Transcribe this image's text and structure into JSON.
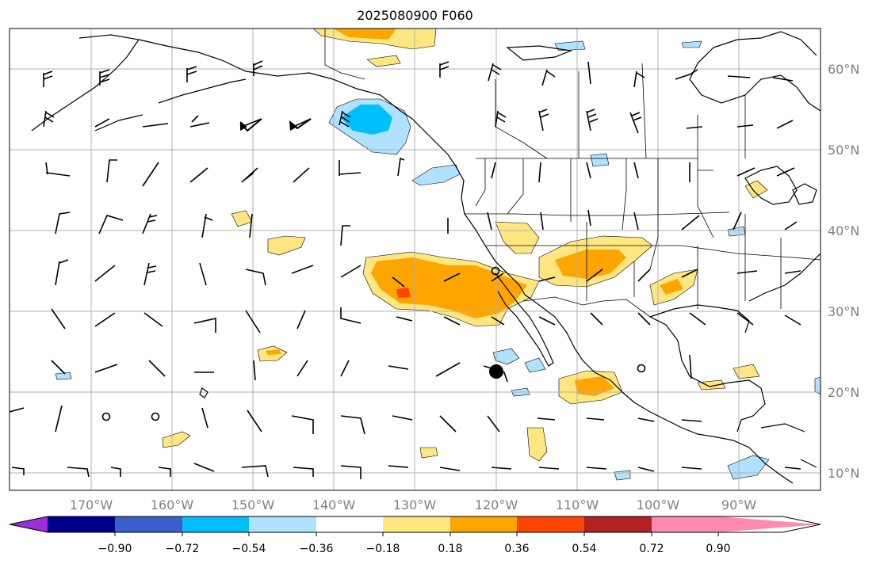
{
  "title": "2025080900 F060",
  "map": {
    "lon_ticks": [
      "170°W",
      "160°W",
      "150°W",
      "140°W",
      "130°W",
      "120°W",
      "110°W",
      "100°W",
      "90°W"
    ],
    "lat_ticks": [
      "60°N",
      "50°N",
      "40°N",
      "30°N",
      "20°N",
      "10°N"
    ],
    "grid": true,
    "tick_color": "#808080"
  },
  "colorbar": {
    "ticks": [
      "−0.90",
      "−0.72",
      "−0.54",
      "−0.36",
      "−0.18",
      "0.18",
      "0.36",
      "0.54",
      "0.72",
      "0.90"
    ],
    "colors": [
      "#9b30d9",
      "#00008b",
      "#3a5fcd",
      "#00bfff",
      "#b0e2ff",
      "#ffffff",
      "#ffe680",
      "#ffa500",
      "#ff4500",
      "#b22222",
      "#ff8bb0"
    ]
  },
  "colors": {
    "land_line": "#000000",
    "grid_line": "#b0b0b0",
    "barb": "#000000"
  }
}
